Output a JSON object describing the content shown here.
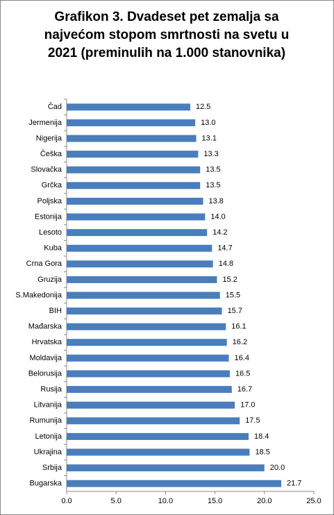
{
  "chart_data": {
    "type": "barh",
    "title": "Grafikon 3. Dvadeset pet zemalja sa najvećom stopom smrtnosti na svetu u 2021 (preminulih na 1.000 stanovnika)",
    "categories": [
      "Čad",
      "Jermenija",
      "Nigerija",
      "Češka",
      "Slovačka",
      "Grčka",
      "Poljska",
      "Estonija",
      "Lesoto",
      "Kuba",
      "Crna Gora",
      "Gruzija",
      "S.Makedonija",
      "BIH",
      "Mađarska",
      "Hrvatska",
      "Moldavija",
      "Belorusija",
      "Rusija",
      "Litvanija",
      "Rumunija",
      "Letonija",
      "Ukrajina",
      "Srbija",
      "Bugarska"
    ],
    "values": [
      12.5,
      13,
      13.1,
      13.3,
      13.5,
      13.5,
      13.8,
      14,
      14.2,
      14.7,
      14.8,
      15.2,
      15.5,
      15.7,
      16.1,
      16.2,
      16.4,
      16.5,
      16.7,
      17,
      17.5,
      18.4,
      18.5,
      20,
      21.7
    ],
    "value_labels": [
      "12.5",
      "13.0",
      "13.1",
      "13.3",
      "13.5",
      "13.5",
      "13.8",
      "14.0",
      "14.2",
      "14.7",
      "14.8",
      "15.2",
      "15.5",
      "15.7",
      "16.1",
      "16.2",
      "16.4",
      "16.5",
      "16.7",
      "17.0",
      "17.5",
      "18.4",
      "18.5",
      "20.0",
      "21.7"
    ],
    "color": "#4a7ebb",
    "xlim": [
      0,
      25
    ],
    "xticks": [
      {
        "value": 0,
        "label": "0.0"
      },
      {
        "value": 5,
        "label": "5.0"
      },
      {
        "value": 10,
        "label": "10.0"
      },
      {
        "value": 15,
        "label": "15.0"
      },
      {
        "value": 20,
        "label": "20.0"
      },
      {
        "value": 25,
        "label": "25.0"
      }
    ],
    "grid": false
  }
}
